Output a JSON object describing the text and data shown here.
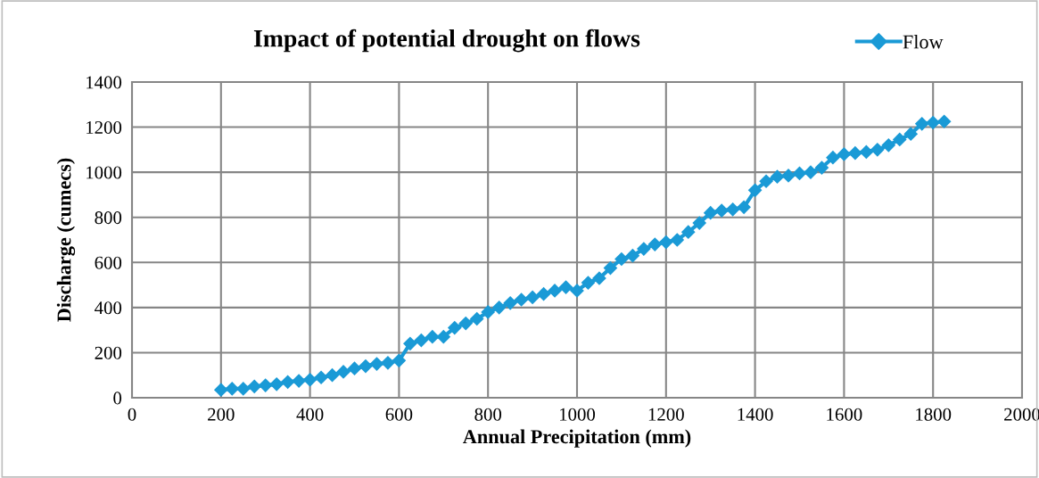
{
  "chart_data": {
    "type": "line",
    "title": "Impact of potential drought on flows",
    "xlabel": "Annual Precipitation (mm)",
    "ylabel": "Discharge (cumecs)",
    "x": [
      200,
      225,
      250,
      275,
      300,
      325,
      350,
      375,
      400,
      425,
      450,
      475,
      500,
      525,
      550,
      575,
      600,
      625,
      650,
      675,
      700,
      725,
      750,
      775,
      800,
      825,
      850,
      875,
      900,
      925,
      950,
      975,
      1000,
      1025,
      1050,
      1075,
      1100,
      1125,
      1150,
      1175,
      1200,
      1225,
      1250,
      1275,
      1300,
      1325,
      1350,
      1375,
      1400,
      1425,
      1450,
      1475,
      1500,
      1525,
      1550,
      1575,
      1600,
      1625,
      1650,
      1675,
      1700,
      1725,
      1750,
      1775,
      1800,
      1825
    ],
    "series": [
      {
        "name": "Flow",
        "color": "#1a9ad6",
        "values": [
          35,
          40,
          40,
          50,
          55,
          60,
          70,
          75,
          80,
          90,
          100,
          115,
          130,
          140,
          150,
          155,
          165,
          240,
          255,
          270,
          270,
          310,
          330,
          350,
          380,
          400,
          420,
          435,
          445,
          460,
          475,
          490,
          475,
          510,
          530,
          575,
          615,
          630,
          660,
          680,
          690,
          700,
          735,
          775,
          820,
          830,
          835,
          845,
          920,
          960,
          980,
          985,
          995,
          1000,
          1020,
          1065,
          1080,
          1085,
          1090,
          1100,
          1120,
          1145,
          1170,
          1215,
          1220,
          1225
        ]
      }
    ],
    "xlim": [
      0,
      2000
    ],
    "xticks": [
      0,
      200,
      400,
      600,
      800,
      1000,
      1200,
      1400,
      1600,
      1800,
      2000
    ],
    "ylim": [
      0,
      1400
    ],
    "yticks": [
      0,
      200,
      400,
      600,
      800,
      1000,
      1200,
      1400
    ],
    "grid": true,
    "legend": "top right",
    "marker": "diamond",
    "line_style": "solid"
  }
}
